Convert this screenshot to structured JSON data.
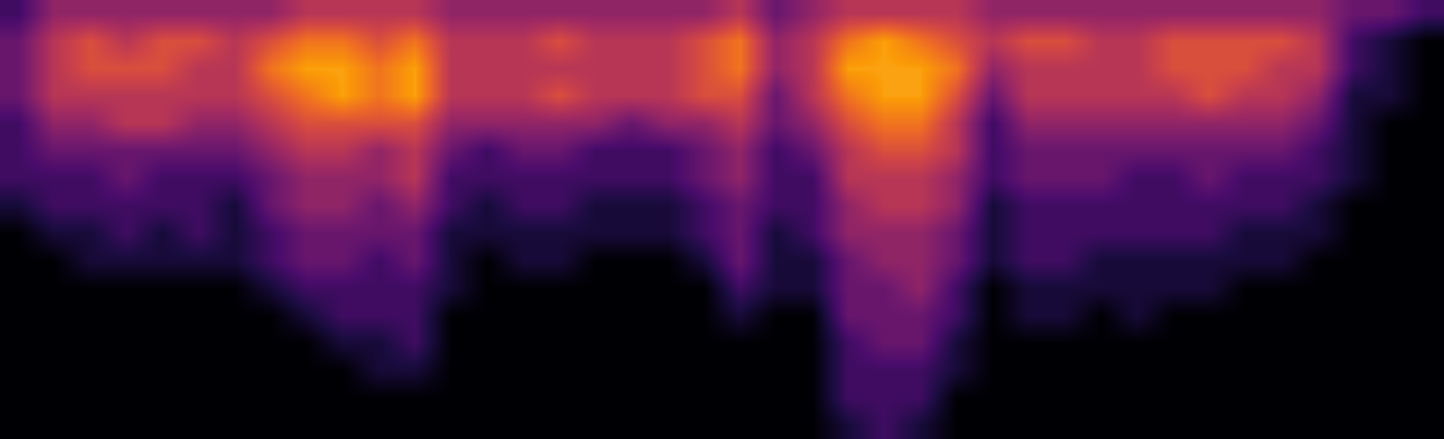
{
  "chart_data": {
    "type": "heatmap",
    "x": [
      0,
      1,
      2,
      3,
      4,
      5,
      6,
      7,
      8,
      9,
      10,
      11,
      12,
      13,
      14,
      15,
      16,
      17,
      18,
      19,
      20,
      21,
      22,
      23,
      24,
      25,
      26,
      27,
      28,
      29,
      30,
      31,
      32,
      33,
      34,
      35,
      36,
      37,
      38,
      39
    ],
    "y": [
      0,
      1,
      2,
      3,
      4,
      5,
      6,
      7,
      8,
      9,
      10,
      11,
      12,
      13,
      14,
      15
    ],
    "z": [
      [
        2,
        4,
        4,
        4,
        4,
        4,
        4,
        4,
        5,
        5,
        5,
        5,
        4,
        4,
        4,
        4,
        4,
        4,
        4,
        4,
        5,
        3,
        4,
        5,
        5,
        5,
        5,
        4,
        4,
        4,
        4,
        4,
        4,
        4,
        4,
        4,
        4,
        3,
        3,
        2
      ],
      [
        3,
        5,
        6,
        5,
        6,
        6,
        5,
        6,
        7,
        7,
        6,
        7,
        5,
        5,
        5,
        6,
        5,
        5,
        5,
        6,
        7,
        4,
        5,
        7,
        8,
        7,
        6,
        5,
        6,
        6,
        5,
        5,
        6,
        6,
        6,
        6,
        5,
        2,
        1,
        0
      ],
      [
        3,
        5,
        6,
        6,
        6,
        5,
        5,
        7,
        8,
        8,
        7,
        8,
        5,
        5,
        5,
        5,
        5,
        5,
        5,
        6,
        7,
        4,
        5,
        8,
        8,
        8,
        7,
        4,
        5,
        5,
        5,
        5,
        6,
        6,
        6,
        5,
        5,
        2,
        1,
        0
      ],
      [
        3,
        5,
        5,
        5,
        5,
        5,
        5,
        6,
        7,
        8,
        7,
        8,
        5,
        5,
        5,
        6,
        5,
        5,
        5,
        6,
        6,
        3,
        5,
        7,
        8,
        8,
        6,
        3,
        5,
        5,
        5,
        5,
        5,
        6,
        5,
        5,
        4,
        1,
        1,
        0
      ],
      [
        2,
        4,
        4,
        5,
        5,
        4,
        4,
        5,
        6,
        6,
        6,
        6,
        4,
        4,
        4,
        4,
        4,
        3,
        4,
        4,
        5,
        3,
        4,
        6,
        7,
        7,
        5,
        2,
        4,
        4,
        4,
        4,
        4,
        4,
        4,
        4,
        3,
        1,
        0,
        0
      ],
      [
        2,
        3,
        3,
        3,
        3,
        3,
        3,
        4,
        5,
        5,
        4,
        5,
        3,
        2,
        3,
        3,
        2,
        2,
        2,
        3,
        4,
        2,
        3,
        5,
        6,
        6,
        5,
        2,
        3,
        3,
        3,
        3,
        3,
        3,
        3,
        3,
        2,
        1,
        0,
        0
      ],
      [
        2,
        2,
        2,
        3,
        2,
        2,
        2,
        3,
        4,
        4,
        4,
        5,
        2,
        2,
        2,
        2,
        2,
        2,
        2,
        3,
        4,
        2,
        2,
        5,
        5,
        5,
        4,
        2,
        3,
        3,
        3,
        2,
        2,
        3,
        2,
        2,
        2,
        1,
        0,
        0
      ],
      [
        1,
        2,
        2,
        2,
        2,
        2,
        1,
        3,
        4,
        4,
        3,
        4,
        2,
        1,
        2,
        2,
        1,
        1,
        1,
        2,
        3,
        2,
        2,
        4,
        5,
        5,
        4,
        1,
        2,
        2,
        2,
        2,
        2,
        2,
        2,
        2,
        1,
        0,
        0,
        0
      ],
      [
        0,
        1,
        1,
        2,
        1,
        2,
        1,
        2,
        3,
        3,
        3,
        3,
        1,
        1,
        1,
        1,
        1,
        1,
        1,
        2,
        3,
        1,
        2,
        4,
        4,
        4,
        3,
        1,
        2,
        2,
        2,
        2,
        2,
        2,
        1,
        1,
        1,
        0,
        0,
        0
      ],
      [
        0,
        0,
        1,
        1,
        1,
        1,
        1,
        2,
        3,
        3,
        2,
        3,
        1,
        0,
        1,
        1,
        0,
        0,
        0,
        1,
        3,
        1,
        1,
        3,
        4,
        4,
        3,
        1,
        2,
        2,
        1,
        1,
        1,
        1,
        1,
        1,
        0,
        0,
        0,
        0
      ],
      [
        0,
        0,
        0,
        0,
        0,
        0,
        0,
        1,
        2,
        2,
        2,
        2,
        1,
        0,
        0,
        0,
        0,
        0,
        0,
        0,
        2,
        1,
        1,
        3,
        3,
        4,
        2,
        0,
        1,
        1,
        1,
        1,
        1,
        1,
        0,
        0,
        0,
        0,
        0,
        0
      ],
      [
        0,
        0,
        0,
        0,
        0,
        0,
        0,
        0,
        1,
        2,
        2,
        2,
        0,
        0,
        0,
        0,
        0,
        0,
        0,
        0,
        1,
        0,
        0,
        3,
        3,
        3,
        2,
        0,
        1,
        1,
        0,
        1,
        0,
        0,
        0,
        0,
        0,
        0,
        0,
        0
      ],
      [
        0,
        0,
        0,
        0,
        0,
        0,
        0,
        0,
        0,
        1,
        1,
        2,
        0,
        0,
        0,
        0,
        0,
        0,
        0,
        0,
        0,
        0,
        0,
        2,
        3,
        3,
        1,
        0,
        0,
        0,
        0,
        0,
        0,
        0,
        0,
        0,
        0,
        0,
        0,
        0
      ],
      [
        0,
        0,
        0,
        0,
        0,
        0,
        0,
        0,
        0,
        0,
        1,
        1,
        0,
        0,
        0,
        0,
        0,
        0,
        0,
        0,
        0,
        0,
        0,
        2,
        2,
        2,
        1,
        0,
        0,
        0,
        0,
        0,
        0,
        0,
        0,
        0,
        0,
        0,
        0,
        0
      ],
      [
        0,
        0,
        0,
        0,
        0,
        0,
        0,
        0,
        0,
        0,
        0,
        0,
        0,
        0,
        0,
        0,
        0,
        0,
        0,
        0,
        0,
        0,
        0,
        2,
        2,
        2,
        0,
        0,
        0,
        0,
        0,
        0,
        0,
        0,
        0,
        0,
        0,
        0,
        0,
        0
      ],
      [
        0,
        0,
        0,
        0,
        0,
        0,
        0,
        0,
        0,
        0,
        0,
        0,
        0,
        0,
        0,
        0,
        0,
        0,
        0,
        0,
        0,
        0,
        0,
        1,
        2,
        1,
        0,
        0,
        0,
        0,
        0,
        0,
        0,
        0,
        0,
        0,
        0,
        0,
        0,
        0
      ]
    ],
    "xlim": [
      -0.5,
      39.5
    ],
    "ylim": [
      15.5,
      -0.5
    ],
    "zlim": [
      0,
      9
    ],
    "tick_labels": false
  }
}
